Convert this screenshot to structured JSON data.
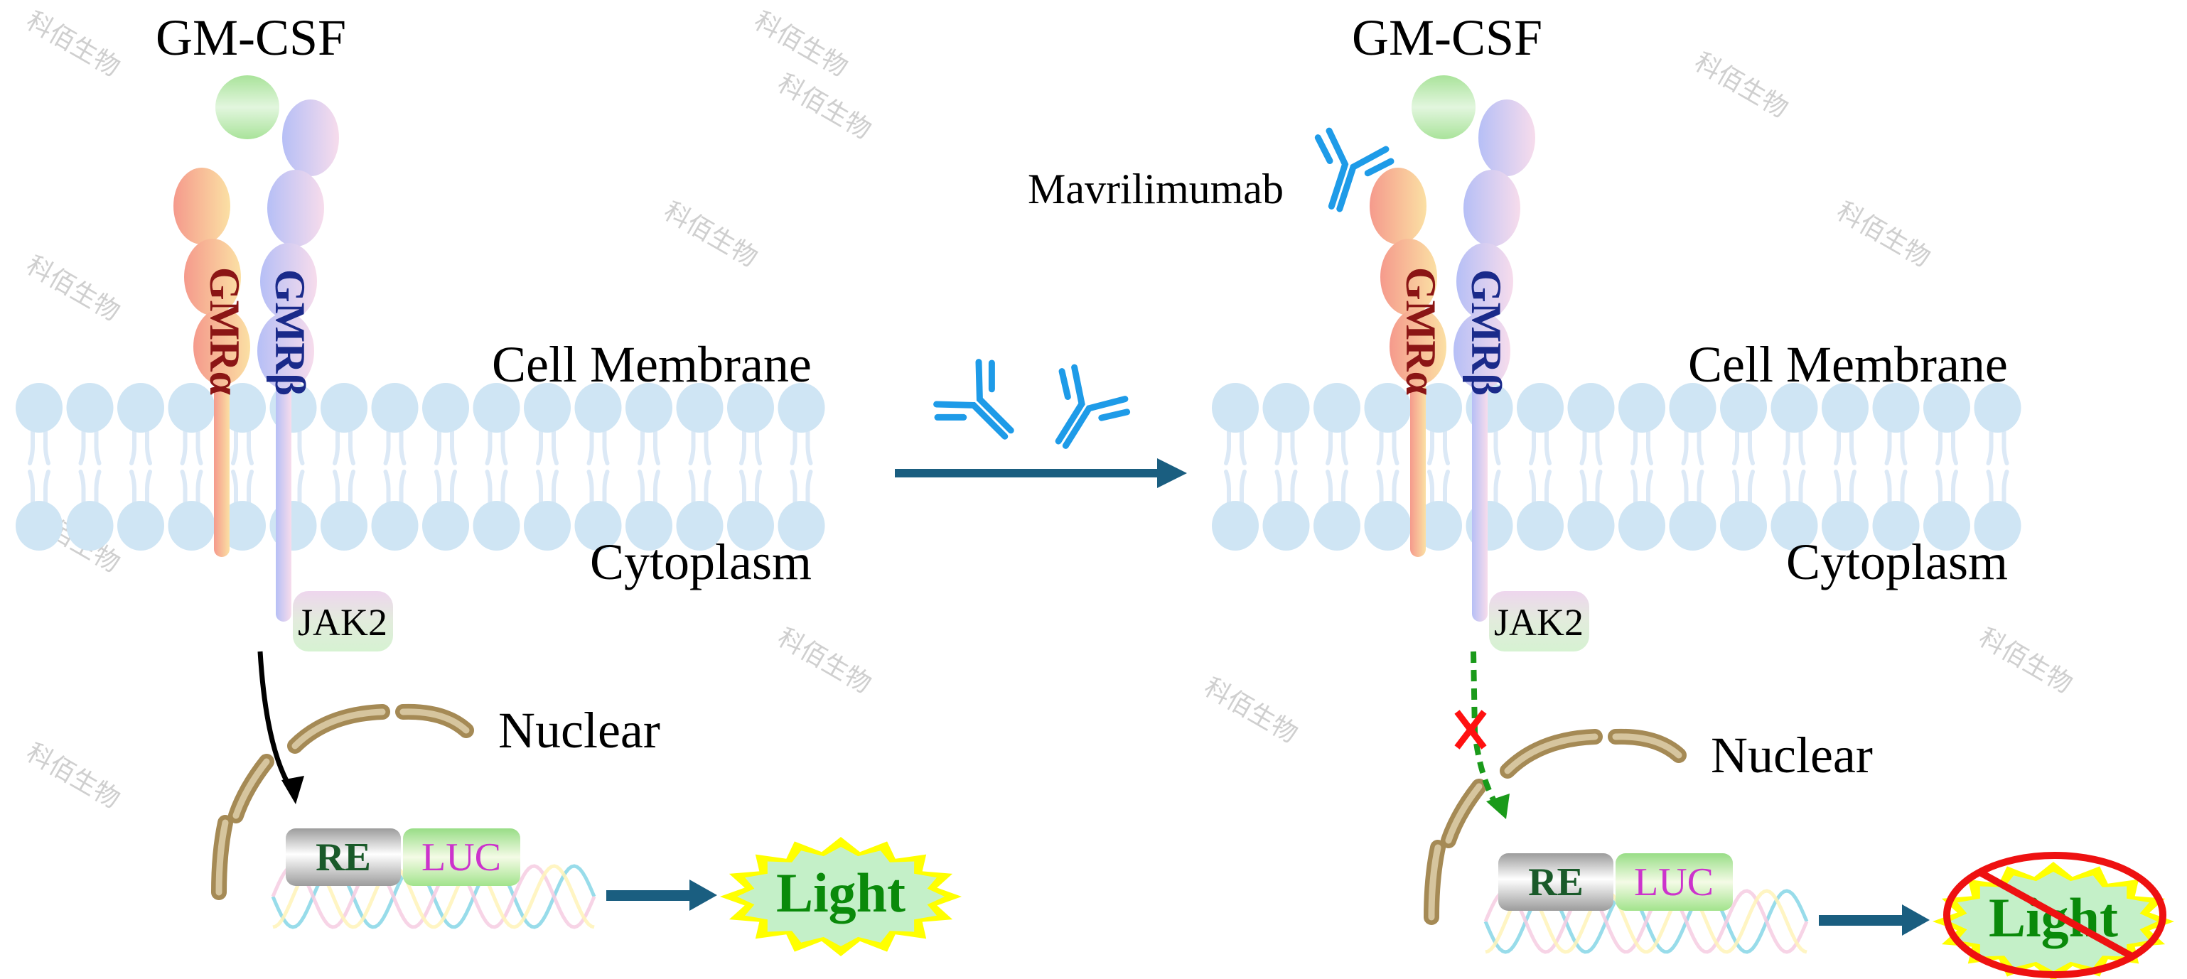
{
  "watermark": "科佰生物",
  "left_panel": {
    "ligand_label": "GM-CSF",
    "receptor_alpha": "GMRα",
    "receptor_beta": "GMRβ",
    "membrane_label": "Cell Membrane",
    "cytoplasm_label": "Cytoplasm",
    "kinase_label": "JAK2",
    "nucleus_label": "Nuclear",
    "promoter_label": "RE",
    "reporter_label": "LUC",
    "output_label": "Light"
  },
  "right_panel": {
    "ligand_label": "GM-CSF",
    "receptor_alpha": "GMRα",
    "receptor_beta": "GMRβ",
    "membrane_label": "Cell Membrane",
    "cytoplasm_label": "Cytoplasm",
    "kinase_label": "JAK2",
    "nucleus_label": "Nuclear",
    "promoter_label": "RE",
    "reporter_label": "LUC",
    "output_label": "Light",
    "antibody_label": "Mavrilimumab",
    "signal_blocked": true,
    "light_blocked": true
  },
  "colors": {
    "ligand": "#b5e6a5",
    "receptor_alpha_text": "#8b1515",
    "receptor_beta_text": "#1a2a8a",
    "membrane": "#cfe5f4",
    "antibody": "#1e9be8",
    "process_arrow": "#1a5e80",
    "nucleus_envelope": "#a58a55",
    "promoter_text": "#1a5a2a",
    "reporter_text": "#cc33cc",
    "light_text": "#0a8a0a",
    "light_burst": "#ffff00",
    "blocked_signal": "#1a9a1a",
    "block_mark": "#ff1010"
  }
}
